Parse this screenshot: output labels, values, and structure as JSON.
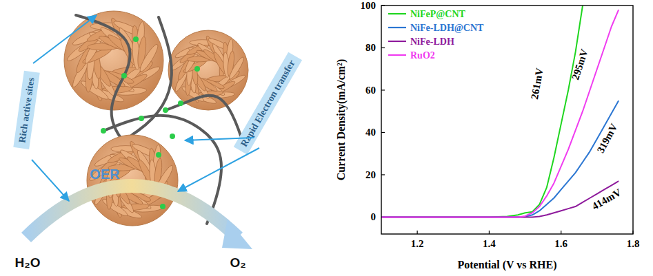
{
  "chart_data": {
    "type": "line",
    "x_label": "Potential (V vs RHE)",
    "y_label": "Current Density(mA/cm²)",
    "x": [
      1.1,
      1.2,
      1.3,
      1.4,
      1.45,
      1.48,
      1.5,
      1.52,
      1.54,
      1.56,
      1.58,
      1.6,
      1.62,
      1.64,
      1.66,
      1.68,
      1.7,
      1.72,
      1.74,
      1.76
    ],
    "series": [
      {
        "name": "NiFeP@CNT",
        "color": "#1fd61f",
        "values": [
          0,
          0,
          0,
          0,
          0.3,
          1,
          2,
          2.5,
          6,
          14,
          28,
          44,
          60,
          78,
          100,
          null,
          null,
          null,
          null,
          null
        ]
      },
      {
        "name": "NiFe-LDH@CNT",
        "color": "#2b76d2",
        "values": [
          0,
          0,
          0,
          0,
          0,
          0,
          0.2,
          1,
          3,
          6,
          9,
          13,
          17,
          21,
          26,
          31,
          37,
          43,
          49,
          55
        ]
      },
      {
        "name": "NiFe-LDH",
        "color": "#8e1a9c",
        "values": [
          0,
          0,
          0,
          0,
          0,
          0,
          0,
          0,
          0.3,
          1,
          2,
          3,
          4,
          5,
          7,
          9,
          11,
          13,
          15,
          17
        ]
      },
      {
        "name": "RuO2",
        "color": "#f03cf0",
        "values": [
          0,
          0,
          0,
          0,
          0,
          0,
          0.5,
          2,
          5,
          10,
          16,
          24,
          32,
          41,
          50,
          60,
          70,
          80,
          90,
          98
        ]
      }
    ],
    "xlim": [
      1.1,
      1.8
    ],
    "xticks": [
      1.2,
      1.4,
      1.6,
      1.8
    ],
    "ylim": [
      -8,
      100
    ],
    "yticks": [
      0,
      20,
      40,
      60,
      80,
      100
    ],
    "legend": "upper left",
    "annotations": [
      {
        "text": "261mV",
        "x": 1.536,
        "y": 63
      },
      {
        "text": "295mV",
        "x": 1.655,
        "y": 72
      },
      {
        "text": "319mV",
        "x": 1.731,
        "y": 37
      },
      {
        "text": "414mV",
        "x": 1.728,
        "y": 8
      }
    ]
  },
  "diagram": {
    "labels": {
      "active_sites": "Rich active sites",
      "electron_transfer": "Rapid Electron transfer",
      "reaction": "OER",
      "reactant": "H₂O",
      "product": "O₂"
    }
  }
}
